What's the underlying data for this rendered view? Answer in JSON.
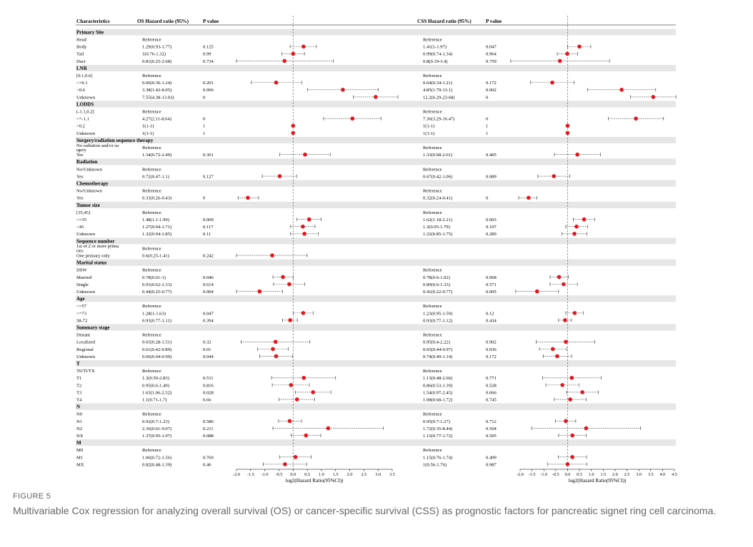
{
  "figure": {
    "label": "FIGURE 5",
    "caption": "Multivariable Cox regression for analyzing overall survival (OS) or cancer-specific survival (CSS) as prognostic factors for pancreatic signet ring cell carcinoma."
  },
  "table_headers": {
    "characteristics": "Characteristics",
    "os_hr": "OS Hazard ratio (95%)",
    "os_p": "P value",
    "css_hr": "CSS Hazard ratio (95%)",
    "css_p": "P value"
  },
  "colors": {
    "point": "#e8141c",
    "group_band": "#e6e6e6",
    "ci_line": "#333333",
    "ref_line": "#666666"
  },
  "chart_data": [
    {
      "type": "forest",
      "name": "OS",
      "xlabel": "log2(Hazard Ratio(95%CI))",
      "xlim": [
        -2.0,
        3.5
      ],
      "xticks": [
        -2.0,
        -1.5,
        -1.0,
        -0.5,
        0.0,
        0.5,
        1.0,
        1.5,
        2.0,
        2.5,
        3.0,
        3.5
      ],
      "reference_line": 0
    },
    {
      "type": "forest",
      "name": "CSS",
      "xlabel": "log2(Hazard Ratio(95%CI))",
      "xlim": [
        -2.0,
        4.5
      ],
      "xticks": [
        -2.0,
        -1.5,
        -1.0,
        -0.5,
        0.0,
        0.5,
        1.0,
        1.5,
        2.0,
        2.5,
        3.0,
        3.5,
        4.0,
        4.5
      ],
      "reference_line": 0
    }
  ],
  "rows": [
    {
      "g": "Primary Site"
    },
    {
      "c": "Head",
      "os": "Reference",
      "osp": "",
      "css": "Reference",
      "cssp": ""
    },
    {
      "c": "Body",
      "os": "1.29(0.93-1.77)",
      "osp": "0.125",
      "os_ci": [
        1.29,
        0.93,
        1.77
      ],
      "css": "1.41(1-1.97)",
      "cssp": "0.047",
      "css_ci": [
        1.41,
        1,
        1.97
      ]
    },
    {
      "c": "Tail",
      "os": "1(0.76-1.32)",
      "osp": "0.99",
      "os_ci": [
        1,
        0.76,
        1.32
      ],
      "css": "0.99(0.74-1.34)",
      "cssp": "0.964",
      "css_ci": [
        0.99,
        0.74,
        1.34
      ]
    },
    {
      "c": "Duct",
      "os": "0.81(0.25-2.68)",
      "osp": "0.734",
      "os_ci": [
        0.81,
        0.25,
        2.68
      ],
      "css": "0.8(0.19-3.4)",
      "cssp": "0.759",
      "css_ci": [
        0.8,
        0.19,
        3.4
      ]
    },
    {
      "g": "LNR"
    },
    {
      "c": "[0.1,0.6]",
      "os": "Reference",
      "osp": "",
      "css": "Reference",
      "cssp": ""
    },
    {
      "c": "<=0.1",
      "os": "0.66(0.36-1.24)",
      "osp": "0.201",
      "os_ci": [
        0.66,
        0.36,
        1.24
      ],
      "css": "0.64(0.34-1.21)",
      "cssp": "0.172",
      "css_ci": [
        0.64,
        0.34,
        1.21
      ]
    },
    {
      "c": ">0.6",
      "os": "3.38(1.42-8.05)",
      "osp": "0.006",
      "os_ci": [
        3.38,
        1.42,
        8.05
      ],
      "css": "4.85(1.79-13.1)",
      "cssp": "0.002",
      "css_ci": [
        4.85,
        1.79,
        13.1
      ]
    },
    {
      "c": "Unknown",
      "os": "7.55(4.38-13.03)",
      "osp": "0",
      "os_ci": [
        7.55,
        4.38,
        13.03
      ],
      "css": "12.2(6.29-23.68)",
      "cssp": "0",
      "css_ci": [
        12.2,
        6.29,
        23.68
      ]
    },
    {
      "g": "LODDS"
    },
    {
      "c": "(-1.1,0.2]",
      "os": "Reference",
      "osp": "",
      "css": "Reference",
      "cssp": ""
    },
    {
      "c": "<=-1.1",
      "os": "4.27(2.11-8.64)",
      "osp": "0",
      "os_ci": [
        4.27,
        2.11,
        8.64
      ],
      "css": "7.36(3.29-16.47)",
      "cssp": "0",
      "css_ci": [
        7.36,
        3.29,
        16.47
      ]
    },
    {
      "c": ">0.2",
      "os": "1(1-1)",
      "osp": "1",
      "os_ci": [
        1,
        1,
        1
      ],
      "css": "1(1-1)",
      "cssp": "1",
      "css_ci": [
        1,
        1,
        1
      ]
    },
    {
      "c": "Unknown",
      "os": "1(1-1)",
      "osp": "1",
      "os_ci": [
        1,
        1,
        1
      ],
      "css": "1(1-1)",
      "cssp": "1",
      "css_ci": [
        1,
        1,
        1
      ]
    },
    {
      "g": "Surgery/radiation sequence therapy"
    },
    {
      "c": "No radiation and/or su",
      "c2": "rgery",
      "os": "Reference",
      "osp": "",
      "css": "Reference",
      "cssp": ""
    },
    {
      "c": "Yes",
      "os": "1.34(0.72-2.49)",
      "osp": "0.361",
      "os_ci": [
        1.34,
        0.72,
        2.49
      ],
      "css": "1.33(0.68-2.61)",
      "cssp": "0.405",
      "css_ci": [
        1.33,
        0.68,
        2.61
      ]
    },
    {
      "g": "Radiation"
    },
    {
      "c": "No/Unknown",
      "os": "Reference",
      "osp": "",
      "css": "Reference",
      "cssp": ""
    },
    {
      "c": "Yes",
      "os": "0.72(0.47-1.1)",
      "osp": "0.127",
      "os_ci": [
        0.72,
        0.47,
        1.1
      ],
      "css": "0.67(0.42-1.06)",
      "cssp": "0.089",
      "css_ci": [
        0.67,
        0.42,
        1.06
      ]
    },
    {
      "g": "Chemotherapy"
    },
    {
      "c": "No/Unknown",
      "os": "Reference",
      "osp": "",
      "css": "Reference",
      "cssp": ""
    },
    {
      "c": "Yes",
      "os": "0.33(0.26-0.43)",
      "osp": "0",
      "os_ci": [
        0.33,
        0.26,
        0.43
      ],
      "css": "0.32(0.24-0.41)",
      "cssp": "0",
      "css_ci": [
        0.32,
        0.24,
        0.41
      ]
    },
    {
      "g": "Tumor size"
    },
    {
      "c": "[35,45]",
      "os": "Reference",
      "osp": "",
      "css": "Reference",
      "cssp": ""
    },
    {
      "c": "<=35",
      "os": "1.48(1.1-1.99)",
      "osp": "0.009",
      "os_ci": [
        1.48,
        1.1,
        1.99
      ],
      "css": "1.62(1.18-2.21)",
      "cssp": "0.003",
      "css_ci": [
        1.62,
        1.18,
        2.21
      ]
    },
    {
      "c": ">45",
      "os": "1.27(0.94-1.71)",
      "osp": "0.117",
      "os_ci": [
        1.27,
        0.94,
        1.71
      ],
      "css": "1.3(0.95-1.79)",
      "cssp": "0.107",
      "css_ci": [
        1.3,
        0.95,
        1.79
      ]
    },
    {
      "c": "Unknown",
      "os": "1.32(0.94-1.85)",
      "osp": "0.11",
      "os_ci": [
        1.32,
        0.94,
        1.85
      ],
      "css": "1.22(0.85-1.75)",
      "cssp": "0.289",
      "css_ci": [
        1.22,
        0.85,
        1.75
      ]
    },
    {
      "g": "Sequence number"
    },
    {
      "c": "1st of 2 or more prima",
      "c2": "ries",
      "os": "Reference",
      "osp": "",
      "css": "",
      "cssp": ""
    },
    {
      "c": "One primary only",
      "os": "0.6(0.25-1.41)",
      "osp": "0.242",
      "os_ci": [
        0.6,
        0.25,
        1.41
      ],
      "css": "",
      "cssp": ""
    },
    {
      "g": "Marital status"
    },
    {
      "c": "DSW",
      "os": "Reference",
      "osp": "",
      "css": "Reference",
      "cssp": ""
    },
    {
      "c": "Married",
      "os": "0.78(0.61-1)",
      "osp": "0.046",
      "os_ci": [
        0.78,
        0.61,
        1
      ],
      "css": "0.78(0.6-1.02)",
      "cssp": "0.068",
      "css_ci": [
        0.78,
        0.6,
        1.02
      ]
    },
    {
      "c": "Single",
      "os": "0.91(0.62-1.33)",
      "osp": "0.614",
      "os_ci": [
        0.91,
        0.62,
        1.33
      ],
      "css": "0.89(0.6-1.33)",
      "cssp": "0.571",
      "css_ci": [
        0.89,
        0.6,
        1.33
      ]
    },
    {
      "c": "Unknown",
      "os": "0.44(0.25-0.77)",
      "osp": "0.004",
      "os_ci": [
        0.44,
        0.25,
        0.77
      ],
      "css": "0.41(0.22-0.77)",
      "cssp": "0.005",
      "css_ci": [
        0.41,
        0.22,
        0.77
      ]
    },
    {
      "g": "Age"
    },
    {
      "c": "<=57",
      "os": "Reference",
      "osp": "",
      "css": "Reference",
      "cssp": ""
    },
    {
      "c": ">=73",
      "os": "1.28(1-1.63)",
      "osp": "0.047",
      "os_ci": [
        1.28,
        1,
        1.63
      ],
      "css": "1.23(0.95-1.59)",
      "cssp": "0.12",
      "css_ci": [
        1.23,
        0.95,
        1.59
      ]
    },
    {
      "c": "58-72",
      "os": "0.93(0.77-1.11)",
      "osp": "0.394",
      "os_ci": [
        0.93,
        0.77,
        1.11
      ],
      "css": "0.93(0.77-1.12)",
      "cssp": "0.434",
      "css_ci": [
        0.93,
        0.77,
        1.12
      ]
    },
    {
      "g": "Summary stage"
    },
    {
      "c": "Distant",
      "os": "Reference",
      "osp": "",
      "css": "Reference",
      "cssp": ""
    },
    {
      "c": "Localized",
      "os": "0.65(0.28-1.51)",
      "osp": "0.32",
      "os_ci": [
        0.65,
        0.28,
        1.51
      ],
      "css": "0.95(0.4-2.22)",
      "cssp": "0.902",
      "css_ci": [
        0.95,
        0.4,
        2.22
      ]
    },
    {
      "c": "Regional",
      "os": "0.61(0.42-0.89)",
      "osp": "0.01",
      "os_ci": [
        0.61,
        0.42,
        0.89
      ],
      "css": "0.65(0.44-0.97)",
      "cssp": "0.036",
      "css_ci": [
        0.65,
        0.44,
        0.97
      ]
    },
    {
      "c": "Unknown",
      "os": "0.66(0.44-0.99)",
      "osp": "0.044",
      "os_ci": [
        0.66,
        0.44,
        0.99
      ],
      "css": "0.74(0.49-1.14)",
      "cssp": "0.172",
      "css_ci": [
        0.74,
        0.49,
        1.14
      ]
    },
    {
      "g": "T"
    },
    {
      "c": "T0/Tl/TX",
      "os": "Reference",
      "osp": "",
      "css": "Reference",
      "cssp": ""
    },
    {
      "c": "T1",
      "os": "1.3(0.59-2.83)",
      "osp": "0.511",
      "os_ci": [
        1.3,
        0.59,
        2.83
      ],
      "css": "1.13(0.48-2.66)",
      "cssp": "0.771",
      "css_ci": [
        1.13,
        0.48,
        2.66
      ]
    },
    {
      "c": "T2",
      "os": "0.95(0.6-1.49)",
      "osp": "0.816",
      "os_ci": [
        0.95,
        0.6,
        1.49
      ],
      "css": "0.86(0.53-1.39)",
      "cssp": "0.528",
      "css_ci": [
        0.86,
        0.53,
        1.39
      ]
    },
    {
      "c": "T3",
      "os": "1.63(1.06-2.52)",
      "osp": "0.028",
      "os_ci": [
        1.63,
        1.06,
        2.52
      ],
      "css": "1.54(0.97-2.45)",
      "cssp": "0.066",
      "css_ci": [
        1.54,
        0.97,
        2.45
      ]
    },
    {
      "c": "T4",
      "os": "1.1(0.71-1.7)",
      "osp": "0.66",
      "os_ci": [
        1.1,
        0.71,
        1.7
      ],
      "css": "1.08(0.68-1.72)",
      "cssp": "0.745",
      "css_ci": [
        1.08,
        0.68,
        1.72
      ]
    },
    {
      "g": "N"
    },
    {
      "c": "N0",
      "os": "Reference",
      "osp": "",
      "css": "Reference",
      "cssp": ""
    },
    {
      "c": "N1",
      "os": "0.92(0.7-1.23)",
      "osp": "0.586",
      "os_ci": [
        0.92,
        0.7,
        1.23
      ],
      "css": "0.95(0.7-1.27)",
      "cssp": "0.712",
      "css_ci": [
        0.95,
        0.7,
        1.27
      ]
    },
    {
      "c": "N2",
      "os": "2.36(0.61-9.07)",
      "osp": "0.211",
      "os_ci": [
        2.36,
        0.61,
        9.07
      ],
      "css": "1.72(0.35-8.44)",
      "cssp": "0.504",
      "css_ci": [
        1.72,
        0.35,
        8.44
      ]
    },
    {
      "c": "NX",
      "os": "1.37(0.95-1.97)",
      "osp": "0.088",
      "os_ci": [
        1.37,
        0.95,
        1.97
      ],
      "css": "1.15(0.77-1.72)",
      "cssp": "0.505",
      "css_ci": [
        1.15,
        0.77,
        1.72
      ]
    },
    {
      "g": "M"
    },
    {
      "c": "M0",
      "os": "Reference",
      "osp": "",
      "css": "Reference",
      "cssp": ""
    },
    {
      "c": "M1",
      "os": "1.06(0.72-1.56)",
      "osp": "0.769",
      "os_ci": [
        1.06,
        0.72,
        1.56
      ],
      "css": "1.15(0.76-1.74)",
      "cssp": "0.499",
      "css_ci": [
        1.15,
        0.76,
        1.74
      ]
    },
    {
      "c": "MX",
      "os": "0.82(0.48-1.39)",
      "osp": "0.46",
      "os_ci": [
        0.82,
        0.48,
        1.39
      ],
      "css": "1(0.56-1.76)",
      "cssp": "0.987",
      "css_ci": [
        1,
        0.56,
        1.76
      ]
    }
  ]
}
